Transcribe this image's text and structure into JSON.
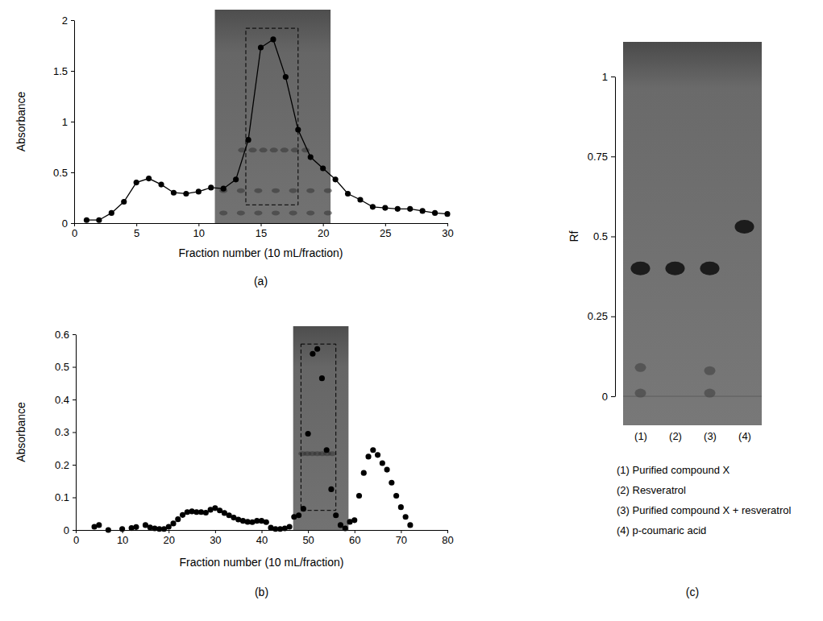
{
  "chart_data": [
    {
      "type": "line",
      "title": "(a)",
      "xlabel": "Fraction number (10 mL/fraction)",
      "ylabel": "Absorbance",
      "x": [
        1,
        2,
        3,
        4,
        5,
        6,
        7,
        8,
        9,
        10,
        11,
        12,
        13,
        14,
        15,
        16,
        17,
        18,
        19,
        20,
        21,
        22,
        23,
        24,
        25,
        26,
        27,
        28,
        29,
        30
      ],
      "values": [
        0.03,
        0.03,
        0.1,
        0.21,
        0.4,
        0.44,
        0.38,
        0.3,
        0.29,
        0.31,
        0.35,
        0.34,
        0.43,
        0.82,
        1.73,
        1.81,
        1.44,
        0.92,
        0.65,
        0.54,
        0.43,
        0.29,
        0.23,
        0.16,
        0.15,
        0.14,
        0.14,
        0.12,
        0.1,
        0.09
      ],
      "color": "#000000",
      "marker": "circle",
      "line_style": "solid",
      "xlim": [
        0,
        30
      ],
      "xticks": [
        0,
        5,
        10,
        15,
        20,
        25,
        30
      ],
      "ylim": [
        0,
        2
      ],
      "yticks": [
        0,
        0.5,
        1,
        1.5,
        2
      ]
    },
    {
      "type": "scatter",
      "title": "(b)",
      "xlabel": "Fraction number (10 mL/fraction)",
      "ylabel": "Absorbance",
      "x": [
        4,
        5,
        7,
        10,
        12,
        13,
        15,
        16,
        17,
        18,
        19,
        20,
        21,
        22,
        23,
        24,
        25,
        26,
        27,
        28,
        29,
        30,
        31,
        32,
        33,
        34,
        35,
        36,
        37,
        38,
        39,
        40,
        41,
        42,
        43,
        44,
        45,
        46,
        47,
        48,
        49,
        50,
        51,
        52,
        53,
        54,
        55,
        56,
        57,
        58,
        59,
        60,
        61,
        62,
        63,
        64,
        65,
        66,
        67,
        68,
        69,
        70,
        71,
        72
      ],
      "values": [
        0.01,
        0.015,
        0,
        0.003,
        0.006,
        0.009,
        0.015,
        0.008,
        0.005,
        0.003,
        0.003,
        0.01,
        0.02,
        0.033,
        0.046,
        0.055,
        0.057,
        0.055,
        0.055,
        0.053,
        0.062,
        0.067,
        0.06,
        0.052,
        0.045,
        0.038,
        0.032,
        0.028,
        0.025,
        0.024,
        0.028,
        0.028,
        0.024,
        0.007,
        0.003,
        0.003,
        0.005,
        0.01,
        0.04,
        0.045,
        0.065,
        0.295,
        0.54,
        0.555,
        0.465,
        0.245,
        0.125,
        0.045,
        0.015,
        0.005,
        0.025,
        0.03,
        0.105,
        0.175,
        0.225,
        0.245,
        0.23,
        0.205,
        0.185,
        0.145,
        0.105,
        0.07,
        0.04,
        0.015
      ],
      "color": "#000000",
      "marker": "circle",
      "xlim": [
        0,
        80
      ],
      "xticks": [
        0,
        10,
        20,
        30,
        40,
        50,
        60,
        70,
        80
      ],
      "ylim": [
        0,
        0.6
      ],
      "yticks": [
        0,
        0.1,
        0.2,
        0.3,
        0.4,
        0.5,
        0.6
      ]
    },
    {
      "type": "scatter",
      "title": "(c)",
      "ylabel": "Rf",
      "categories": [
        "(1)",
        "(2)",
        "(3)",
        "(4)"
      ],
      "series": [
        {
          "color": "#1c1c1c",
          "values": [
            0.4,
            0.4,
            0.4,
            0.53
          ]
        },
        {
          "color": "#4d4d4d",
          "values": [
            0.09,
            null,
            0.08,
            null
          ]
        },
        {
          "color": "#4d4d4d",
          "values": [
            0.01,
            null,
            0.01,
            null
          ]
        }
      ],
      "ylim": [
        0,
        1
      ],
      "yticks": [
        0,
        0.25,
        0.5,
        0.75,
        1
      ],
      "annotations": [
        "(1) Purified compound X",
        "(2) Resveratrol",
        "(3) Purified compound X + resveratrol",
        "(4) p-coumaric acid"
      ]
    }
  ]
}
